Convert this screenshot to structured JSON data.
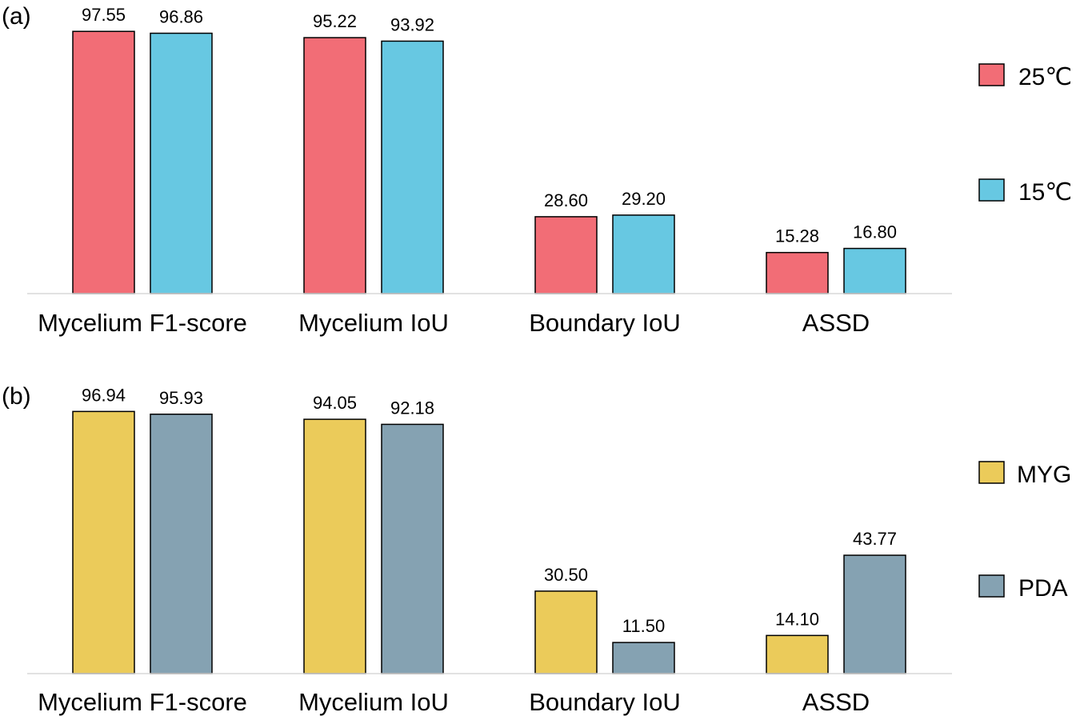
{
  "chart_data": [
    {
      "panel_label": "(a)",
      "type": "bar",
      "categories": [
        "Mycelium F1-score",
        "Mycelium IoU",
        "Boundary IoU",
        "ASSD"
      ],
      "series": [
        {
          "name": "25℃",
          "color": "#f26d76",
          "values": [
            97.55,
            95.22,
            28.6,
            15.28
          ],
          "labels": [
            "97.55",
            "95.22",
            "28.60",
            "15.28"
          ]
        },
        {
          "name": "15℃",
          "color": "#67c8e2",
          "values": [
            96.86,
            93.92,
            29.2,
            16.8
          ],
          "labels": [
            "96.86",
            "93.92",
            "29.20",
            "16.80"
          ]
        }
      ],
      "ylim": [
        0,
        100
      ],
      "grid": false,
      "legend_position": "right"
    },
    {
      "panel_label": "(b)",
      "type": "bar",
      "categories": [
        "Mycelium F1-score",
        "Mycelium IoU",
        "Boundary IoU",
        "ASSD"
      ],
      "series": [
        {
          "name": "MYG",
          "color": "#ebcb5a",
          "values": [
            96.94,
            94.05,
            30.5,
            14.1
          ],
          "labels": [
            "96.94",
            "94.05",
            "30.50",
            "14.10"
          ]
        },
        {
          "name": "PDA",
          "color": "#85a2b2",
          "values": [
            95.93,
            92.18,
            11.5,
            43.77
          ],
          "labels": [
            "95.93",
            "92.18",
            "11.50",
            "43.77"
          ]
        }
      ],
      "ylim": [
        0,
        100
      ],
      "grid": false,
      "legend_position": "right"
    }
  ]
}
